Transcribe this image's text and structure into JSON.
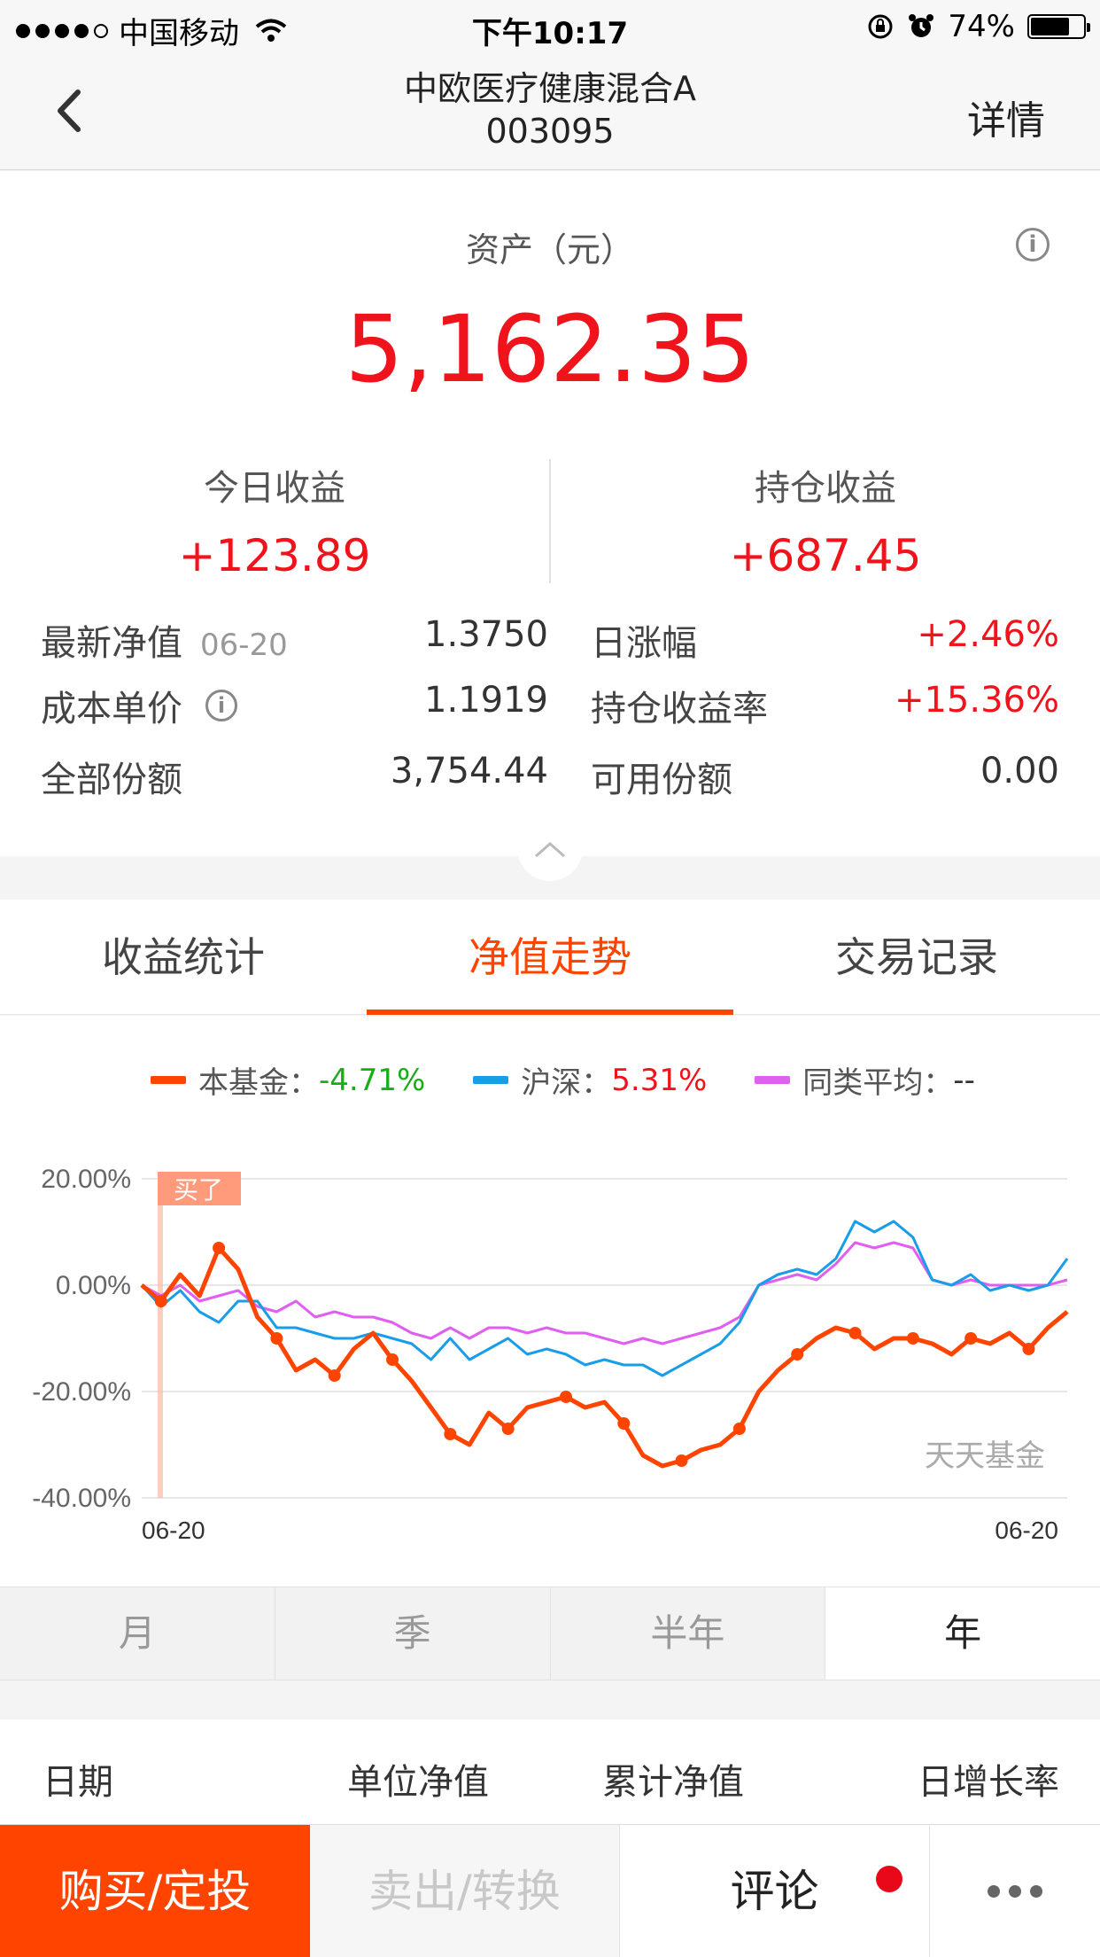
{
  "status_bar": {
    "carrier": "中国移动",
    "time": "下午10:17",
    "battery": "74%",
    "battery_level": 0.74
  },
  "nav": {
    "fund_name": "中欧医疗健康混合A",
    "fund_code": "003095",
    "detail_label": "详情"
  },
  "asset": {
    "label": "资产（元）",
    "value": "5,162.35",
    "today_label": "今日收益",
    "today_value": "+123.89",
    "holding_label": "持仓收益",
    "holding_value": "+687.45",
    "rows": {
      "nav_label": "最新净值",
      "nav_date": "06-20",
      "nav_value": "1.3750",
      "daily_change_label": "日涨幅",
      "daily_change_value": "+2.46%",
      "cost_label": "成本单价",
      "cost_value": "1.1919",
      "holding_rate_label": "持仓收益率",
      "holding_rate_value": "+15.36%",
      "shares_label": "全部份额",
      "shares_value": "3,754.44",
      "available_label": "可用份额",
      "available_value": "0.00"
    }
  },
  "tabs": [
    "收益统计",
    "净值走势",
    "交易记录"
  ],
  "chart_data": {
    "type": "line",
    "legend": [
      {
        "name": "本基金：",
        "value": "-4.71%",
        "color": "#ff4400",
        "value_color": "#1aad19"
      },
      {
        "name": "沪深：",
        "value": "5.31%",
        "color": "#1a9de8",
        "value_color": "#f0131b"
      },
      {
        "name": "同类平均：",
        "value": "--",
        "color": "#e05ef0",
        "value_color": "#333333"
      }
    ],
    "y_ticks": [
      "20.00%",
      "0.00%",
      "-20.00%",
      "-40.00%"
    ],
    "ylim": [
      -40,
      20
    ],
    "x_start_label": "06-20",
    "x_end_label": "06-20",
    "buy_marker": "买了",
    "watermark": "天天基金",
    "series": [
      {
        "name": "本基金",
        "color": "#ff4400",
        "values": [
          0,
          -3,
          2,
          -2,
          7,
          3,
          -6,
          -10,
          -16,
          -14,
          -17,
          -12,
          -9,
          -14,
          -18,
          -23,
          -28,
          -30,
          -24,
          -27,
          -23,
          -22,
          -21,
          -23,
          -22,
          -26,
          -32,
          -34,
          -33,
          -31,
          -30,
          -27,
          -20,
          -16,
          -13,
          -10,
          -8,
          -9,
          -12,
          -10,
          -10,
          -11,
          -13,
          -10,
          -11,
          -9,
          -12,
          -8,
          -5
        ]
      },
      {
        "name": "沪深",
        "color": "#1a9de8",
        "values": [
          0,
          -4,
          -1,
          -5,
          -7,
          -3,
          -3,
          -8,
          -8,
          -9,
          -10,
          -10,
          -9,
          -10,
          -11,
          -14,
          -10,
          -14,
          -12,
          -10,
          -13,
          -12,
          -13,
          -15,
          -14,
          -15,
          -15,
          -17,
          -15,
          -13,
          -11,
          -7,
          0,
          2,
          3,
          2,
          5,
          12,
          10,
          12,
          9,
          1,
          0,
          2,
          -1,
          0,
          -1,
          0,
          5
        ]
      },
      {
        "name": "同类平均",
        "color": "#e05ef0",
        "values": [
          0,
          -2,
          0,
          -3,
          -2,
          -1,
          -4,
          -5,
          -3,
          -6,
          -5,
          -6,
          -6,
          -7,
          -9,
          -10,
          -8,
          -10,
          -8,
          -8,
          -9,
          -8,
          -9,
          -9,
          -10,
          -11,
          -10,
          -11,
          -10,
          -9,
          -8,
          -6,
          0,
          1,
          2,
          1,
          4,
          8,
          7,
          8,
          7,
          1,
          0,
          1,
          0,
          0,
          0,
          0,
          1
        ]
      }
    ]
  },
  "periods": [
    "月",
    "季",
    "半年",
    "年"
  ],
  "table_headers": [
    "日期",
    "单位净值",
    "累计净值",
    "日增长率"
  ],
  "actions": {
    "buy": "购买/定投",
    "sell": "卖出/转换",
    "comment": "评论"
  }
}
